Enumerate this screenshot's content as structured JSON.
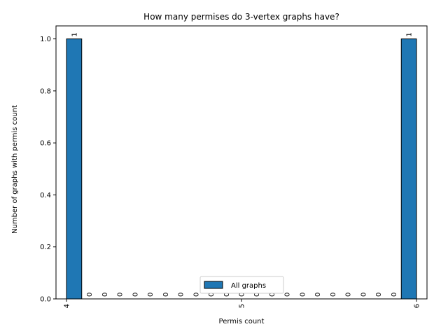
{
  "chart_data": {
    "type": "bar",
    "title": "How many permises do 3-vertex graphs have?",
    "xlabel": "Permis count",
    "ylabel": "Number of graphs with permis count",
    "xlim": [
      3.94,
      6.06
    ],
    "ylim": [
      0,
      1.05
    ],
    "x_ticks": [
      4,
      5,
      6
    ],
    "y_ticks": [
      0.0,
      0.2,
      0.4,
      0.6,
      0.8,
      1.0
    ],
    "bin_width": 0.08695652,
    "bin_starts": [
      4.0,
      4.08695652,
      4.17391304,
      4.26086957,
      4.34782609,
      4.43478261,
      4.52173913,
      4.60869565,
      4.69565217,
      4.7826087,
      4.86956522,
      4.95652174,
      5.04347826,
      5.13043478,
      5.2173913,
      5.30434783,
      5.39130435,
      5.47826087,
      5.56521739,
      5.65217391,
      5.73913043,
      5.82608696,
      5.91304348
    ],
    "series": [
      {
        "name": "All graphs",
        "color": "#1f77b4",
        "values": [
          1,
          0,
          0,
          0,
          0,
          0,
          0,
          0,
          0,
          0,
          0,
          0,
          0,
          0,
          0,
          0,
          0,
          0,
          0,
          0,
          0,
          0,
          1
        ]
      }
    ],
    "legend_position": "lower center",
    "grid": false
  }
}
